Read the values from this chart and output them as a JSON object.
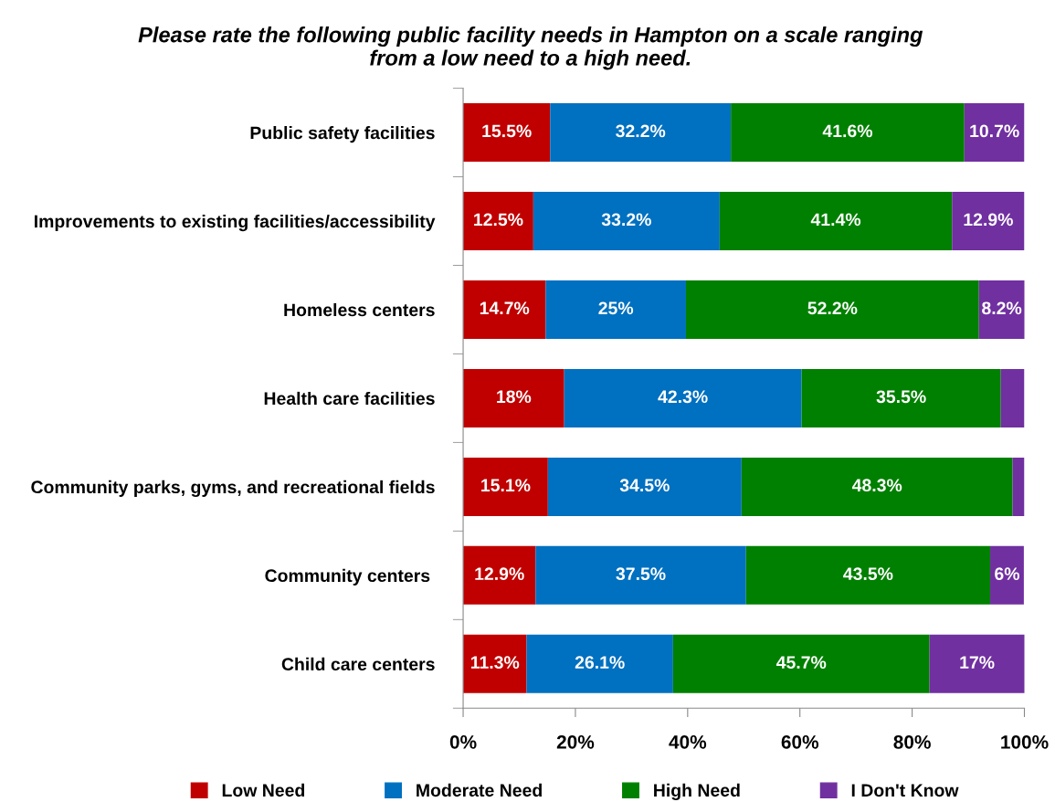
{
  "chart_data": {
    "type": "bar",
    "orientation": "horizontal",
    "stacked": true,
    "title": "Please rate the following public facility needs in Hampton on a scale ranging\nfrom a low need to a high need.",
    "categories": [
      "Public safety facilities",
      "Improvements to existing facilities/accessibility",
      "Homeless centers",
      "Health care facilities",
      "Community parks, gyms, and recreational fields",
      "Community centers ",
      "Child care centers"
    ],
    "series": [
      {
        "name": "Low Need",
        "color": "#c00000",
        "values": [
          15.5,
          12.5,
          14.7,
          18,
          15.1,
          12.9,
          11.3
        ],
        "value_labels": [
          "15.5%",
          "12.5%",
          "14.7%",
          "18%",
          "15.1%",
          "12.9%",
          "11.3%"
        ]
      },
      {
        "name": "Moderate Need",
        "color": "#0070c0",
        "values": [
          32.2,
          33.2,
          25,
          42.3,
          34.5,
          37.5,
          26.1
        ],
        "value_labels": [
          "32.2%",
          "33.2%",
          "25%",
          "42.3%",
          "34.5%",
          "37.5%",
          "26.1%"
        ]
      },
      {
        "name": "High Need",
        "color": "#008000",
        "values": [
          41.6,
          41.4,
          52.2,
          35.5,
          48.3,
          43.5,
          45.7
        ],
        "value_labels": [
          "41.6%",
          "41.4%",
          "52.2%",
          "35.5%",
          "48.3%",
          "43.5%",
          "45.7%"
        ]
      },
      {
        "name": "I Don't Know",
        "color": "#7030a0",
        "values": [
          10.7,
          12.9,
          8.2,
          4.2,
          2.1,
          6,
          17
        ],
        "value_labels": [
          "10.7%",
          "12.9%",
          "8.2%",
          null,
          null,
          "6%",
          "17%"
        ]
      }
    ],
    "xlim": [
      0,
      100
    ],
    "xticks": [
      {
        "value": 0,
        "label": "0%"
      },
      {
        "value": 20,
        "label": "20%"
      },
      {
        "value": 40,
        "label": "40%"
      },
      {
        "value": 60,
        "label": "60%"
      },
      {
        "value": 80,
        "label": "80%"
      },
      {
        "value": 100,
        "label": "100%"
      }
    ],
    "grid": false,
    "legend": "bottom"
  }
}
